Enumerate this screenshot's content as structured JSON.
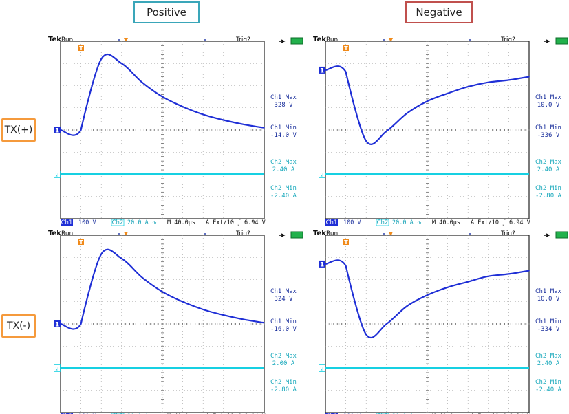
{
  "headers": {
    "positive": {
      "label": "Positive",
      "color": "#3aa6b9"
    },
    "negative": {
      "label": "Negative",
      "color": "#c0504d"
    }
  },
  "rows": [
    {
      "label": "TX(+)",
      "color": "#f59a3c"
    },
    {
      "label": "TX(-)",
      "color": "#f59a3c"
    }
  ],
  "colors": {
    "ch1": "#1f2fd6",
    "ch2": "#16d0e2",
    "readout": "#1a2f9c",
    "grid": "#9a9a9a",
    "status_green": "#22b14c",
    "trigger": "#f08a1a"
  },
  "scope_common": {
    "brand": "Tek",
    "state": "Run",
    "trig": "Trig?",
    "ch1_marker": "1",
    "ch2_marker": "2",
    "trigger_marker": "T",
    "ch1_label": "Ch1",
    "ch1_scale": "100 V",
    "ch2_label": "Ch2",
    "ch2_scale": "20.0 A ∿",
    "timebase": "M 40.0µs",
    "trigger_source": "A Ext/10 ∫",
    "trigger_level": "6.94 V"
  },
  "scopes": [
    {
      "id": "tx-plus-positive",
      "readouts": [
        {
          "title": "Ch1 Max",
          "value": "328 V"
        },
        {
          "title": "Ch1 Min",
          "value": "-14.0 V"
        },
        {
          "title": "Ch2 Max",
          "value": "2.40 A"
        },
        {
          "title": "Ch2 Min",
          "value": "-2.40 A"
        }
      ]
    },
    {
      "id": "tx-plus-negative",
      "readouts": [
        {
          "title": "Ch1 Max",
          "value": "10.0 V"
        },
        {
          "title": "Ch1 Min",
          "value": "-336 V"
        },
        {
          "title": "Ch2 Max",
          "value": "2.40 A"
        },
        {
          "title": "Ch2 Min",
          "value": "-2.80 A"
        }
      ]
    },
    {
      "id": "tx-minus-positive",
      "readouts": [
        {
          "title": "Ch1 Max",
          "value": "324 V"
        },
        {
          "title": "Ch1 Min",
          "value": "-16.0 V"
        },
        {
          "title": "Ch2 Max",
          "value": "2.00 A"
        },
        {
          "title": "Ch2 Min",
          "value": "-2.80 A"
        }
      ]
    },
    {
      "id": "tx-minus-negative",
      "readouts": [
        {
          "title": "Ch1 Max",
          "value": "10.0 V"
        },
        {
          "title": "Ch1 Min",
          "value": "-334 V"
        },
        {
          "title": "Ch2 Max",
          "value": "2.40 A"
        },
        {
          "title": "Ch2 Min",
          "value": "-2.40 A"
        }
      ]
    }
  ],
  "chart_data": [
    {
      "type": "line",
      "x_unit": "µs",
      "x": [
        0,
        40,
        80,
        120,
        160,
        200,
        240,
        280,
        320,
        360,
        400
      ],
      "series": [
        {
          "name": "Ch1",
          "unit": "V",
          "values": [
            0,
            0,
            320,
            300,
            215,
            150,
            105,
            70,
            45,
            25,
            10
          ]
        },
        {
          "name": "Ch2",
          "unit": "A",
          "values": [
            0,
            0,
            0,
            0,
            0,
            0,
            0,
            0,
            0,
            0,
            0
          ]
        }
      ]
    },
    {
      "type": "line",
      "x_unit": "µs",
      "x": [
        0,
        40,
        80,
        120,
        160,
        200,
        240,
        280,
        320,
        360,
        400
      ],
      "series": [
        {
          "name": "Ch1",
          "unit": "V",
          "values": [
            0,
            -8,
            -320,
            -275,
            -195,
            -140,
            -105,
            -75,
            -55,
            -45,
            -30
          ]
        },
        {
          "name": "Ch2",
          "unit": "A",
          "values": [
            0,
            0,
            0,
            0,
            0,
            0,
            0,
            0,
            0,
            0,
            0
          ]
        }
      ]
    },
    {
      "type": "line",
      "x_unit": "µs",
      "x": [
        0,
        40,
        80,
        120,
        160,
        200,
        240,
        280,
        320,
        360,
        400
      ],
      "series": [
        {
          "name": "Ch1",
          "unit": "V",
          "values": [
            0,
            0,
            315,
            295,
            210,
            145,
            100,
            65,
            40,
            20,
            5
          ]
        },
        {
          "name": "Ch2",
          "unit": "A",
          "values": [
            0,
            0,
            0,
            0,
            0,
            0,
            0,
            0,
            0,
            0,
            0
          ]
        }
      ]
    },
    {
      "type": "line",
      "x_unit": "µs",
      "x": [
        0,
        40,
        80,
        120,
        160,
        200,
        240,
        280,
        320,
        360,
        400
      ],
      "series": [
        {
          "name": "Ch1",
          "unit": "V",
          "values": [
            0,
            -8,
            -318,
            -270,
            -190,
            -140,
            -105,
            -80,
            -55,
            -45,
            -30
          ]
        },
        {
          "name": "Ch2",
          "unit": "A",
          "values": [
            0,
            0,
            0,
            0,
            0,
            0,
            0,
            0,
            0,
            0,
            0
          ]
        }
      ]
    }
  ]
}
